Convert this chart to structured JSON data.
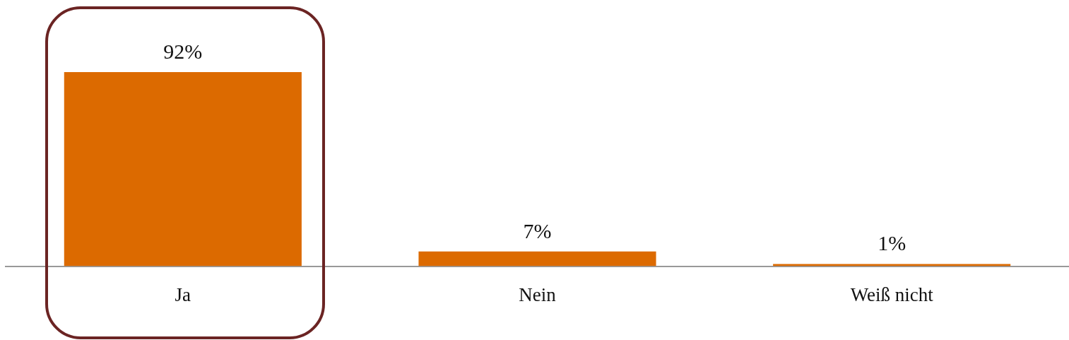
{
  "chart_data": {
    "type": "bar",
    "categories": [
      "Ja",
      "Nein",
      "Weiß nicht"
    ],
    "values": [
      92,
      7,
      1
    ],
    "color": "#dc6a00",
    "value_labels": [
      "92%",
      "7%",
      "1%"
    ],
    "grid": false,
    "legend": false
  }
}
